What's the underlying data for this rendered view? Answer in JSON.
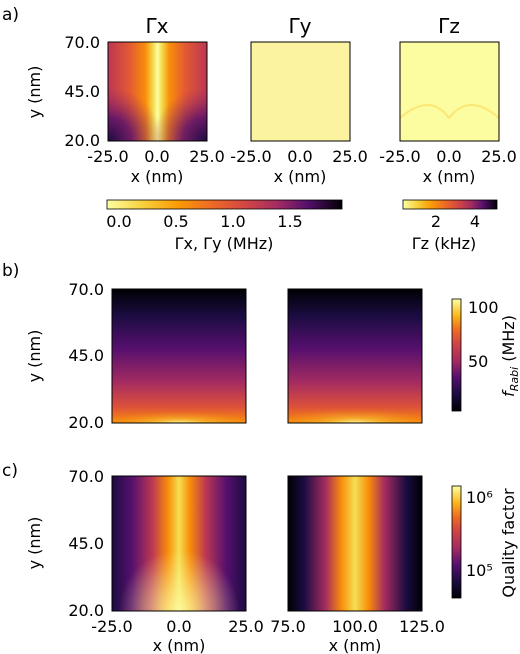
{
  "figure": {
    "panel_labels": [
      "a)",
      "b)",
      "c)"
    ]
  },
  "chart_data": [
    {
      "id": "a-gamma-x",
      "type": "heatmap",
      "title": "Γx",
      "xlabel": "x (nm)",
      "ylabel": "y (nm)",
      "xlim": [
        -25.0,
        25.0
      ],
      "ylim": [
        20.0,
        70.0
      ],
      "xticks": [
        "-25.0",
        "0.0",
        "25.0"
      ],
      "yticks": [
        "20.0",
        "45.0",
        "70.0"
      ],
      "colorbar": "cb-gamma-xy",
      "pattern": "bright vertical band at x = 0, darkest at bottom corners",
      "x": [
        -25,
        -18.75,
        -12.5,
        -6.25,
        0,
        6.25,
        12.5,
        18.75,
        25
      ],
      "y": [
        20,
        26.25,
        32.5,
        38.75,
        45,
        51.25,
        57.5,
        63.75,
        70
      ],
      "z": [
        [
          1.55,
          1.3,
          0.95,
          0.55,
          0.05,
          0.55,
          0.95,
          1.3,
          1.55
        ],
        [
          1.15,
          1.0,
          0.8,
          0.5,
          0.08,
          0.5,
          0.8,
          1.0,
          1.15
        ],
        [
          0.95,
          0.85,
          0.7,
          0.45,
          0.1,
          0.45,
          0.7,
          0.85,
          0.95
        ],
        [
          0.85,
          0.78,
          0.65,
          0.42,
          0.1,
          0.42,
          0.65,
          0.78,
          0.85
        ],
        [
          0.8,
          0.73,
          0.62,
          0.4,
          0.1,
          0.4,
          0.62,
          0.73,
          0.8
        ],
        [
          0.77,
          0.7,
          0.6,
          0.38,
          0.1,
          0.38,
          0.6,
          0.7,
          0.77
        ],
        [
          0.75,
          0.68,
          0.58,
          0.37,
          0.1,
          0.37,
          0.58,
          0.68,
          0.75
        ],
        [
          0.73,
          0.67,
          0.57,
          0.36,
          0.1,
          0.36,
          0.57,
          0.67,
          0.73
        ],
        [
          0.72,
          0.66,
          0.56,
          0.35,
          0.1,
          0.35,
          0.56,
          0.66,
          0.72
        ]
      ]
    },
    {
      "id": "a-gamma-y",
      "type": "heatmap",
      "title": "Γy",
      "xlabel": "x (nm)",
      "xlim": [
        -25.0,
        25.0
      ],
      "ylim": [
        20.0,
        70.0
      ],
      "xticks": [
        "-25.0",
        "0.0",
        "25.0"
      ],
      "colorbar": "cb-gamma-xy",
      "pattern": "nearly uniform, low value",
      "uniform_value": 0.08
    },
    {
      "id": "a-gamma-z",
      "type": "heatmap",
      "title": "Γz",
      "xlabel": "x (nm)",
      "xlim": [
        -25.0,
        25.0
      ],
      "ylim": [
        20.0,
        70.0
      ],
      "xticks": [
        "-25.0",
        "0.0",
        "25.0"
      ],
      "colorbar": "cb-gamma-z",
      "pattern": "uniform low value with two dark arcs near y = 20 centred at x = ±10",
      "background_value": 0.5,
      "arc_centers_x": [
        -10,
        10
      ],
      "arc_peak_value": 4.8
    },
    {
      "id": "cb-gamma-xy",
      "type": "colorbar",
      "orientation": "horizontal",
      "label": "Γx, Γy (MHz)",
      "range": [
        0.0,
        2.0
      ],
      "ticks": [
        "0.0",
        "0.5",
        "1.0",
        "1.5"
      ],
      "colormap": "inferno_r"
    },
    {
      "id": "cb-gamma-z",
      "type": "colorbar",
      "orientation": "horizontal",
      "label": "Γz (kHz)",
      "range": [
        0.3,
        5.0
      ],
      "ticks": [
        "2",
        "4"
      ],
      "colormap": "inferno_r"
    },
    {
      "id": "b-rabi-left",
      "type": "heatmap",
      "ylabel": "y (nm)",
      "yticks": [
        "20.0",
        "45.0",
        "70.0"
      ],
      "ylim": [
        20.0,
        70.0
      ],
      "colorbar": "cb-rabi",
      "pattern": "decays with y, brightest along bottom edge",
      "value_bottom": 85,
      "value_top": 5
    },
    {
      "id": "b-rabi-right",
      "type": "heatmap",
      "ylim": [
        20.0,
        70.0
      ],
      "colorbar": "cb-rabi",
      "pattern": "decays with y, brightest along bottom edge",
      "value_bottom": 100,
      "value_top": 5
    },
    {
      "id": "cb-rabi",
      "type": "colorbar",
      "orientation": "vertical",
      "label": "f_Rabi (MHz)",
      "range": [
        5,
        105
      ],
      "ticks": [
        "50",
        "100"
      ],
      "colormap": "inferno"
    },
    {
      "id": "c-quality-left",
      "type": "heatmap",
      "xlabel": "x (nm)",
      "ylabel": "y (nm)",
      "xlim": [
        -25.0,
        25.0
      ],
      "ylim": [
        20.0,
        70.0
      ],
      "xticks": [
        "-25.0",
        "0.0",
        "25.0"
      ],
      "yticks": [
        "20.0",
        "45.0",
        "70.0"
      ],
      "colorbar": "cb-quality",
      "pattern": "bright vertical band centred at x = 0"
    },
    {
      "id": "c-quality-right",
      "type": "heatmap",
      "xlabel": "x (nm)",
      "xlim": [
        75.0,
        125.0
      ],
      "ylim": [
        20.0,
        70.0
      ],
      "xticks": [
        "75.0",
        "100.0",
        "125.0"
      ],
      "colorbar": "cb-quality",
      "pattern": "bright vertical band centred at x = 100"
    },
    {
      "id": "cb-quality",
      "type": "colorbar",
      "orientation": "vertical",
      "label": "Quality factor",
      "scale": "log",
      "range": [
        40000,
        2000000
      ],
      "ticks": [
        "10⁵",
        "10⁶"
      ],
      "colormap": "inferno"
    }
  ]
}
